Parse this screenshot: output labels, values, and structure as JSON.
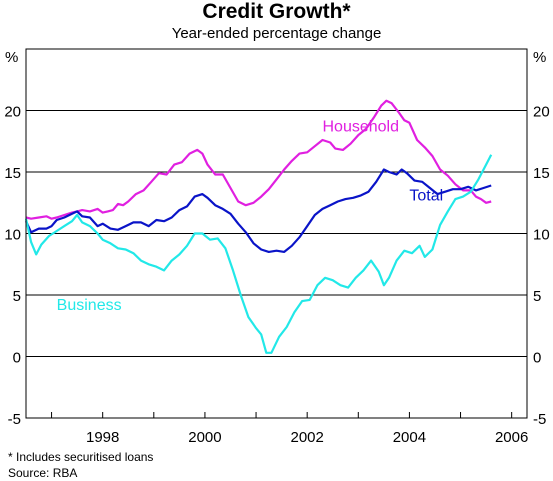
{
  "title": "Credit Growth*",
  "subtitle": "Year-ended percentage change",
  "footnote": "*   Includes securitised loans",
  "source": "Source: RBA",
  "chart_data": {
    "type": "line",
    "title": "Credit Growth*",
    "subtitle": "Year-ended percentage change",
    "y_unit_left": "%",
    "y_unit_right": "%",
    "ylim": [
      -5,
      25
    ],
    "yticks": [
      -5,
      0,
      5,
      10,
      15,
      20
    ],
    "ytick_labels": [
      "-5",
      "0",
      "5",
      "10",
      "15",
      "20"
    ],
    "xlim": [
      1996.5,
      2006.3
    ],
    "xticks": [
      1998,
      2000,
      2002,
      2004,
      2006
    ],
    "xtick_labels": [
      "1998",
      "2000",
      "2002",
      "2004",
      "2006"
    ],
    "grid": "horizontal",
    "series": [
      {
        "name": "Household",
        "color": "#e020e0",
        "label_pos": [
          2002.3,
          18.3
        ],
        "points": [
          [
            1996.5,
            11.3
          ],
          [
            1996.6,
            11.2
          ],
          [
            1996.75,
            11.3
          ],
          [
            1996.9,
            11.4
          ],
          [
            1997.0,
            11.2
          ],
          [
            1997.1,
            11.3
          ],
          [
            1997.25,
            11.5
          ],
          [
            1997.4,
            11.7
          ],
          [
            1997.5,
            11.8
          ],
          [
            1997.6,
            11.9
          ],
          [
            1997.75,
            11.8
          ],
          [
            1997.9,
            12.0
          ],
          [
            1998.0,
            11.7
          ],
          [
            1998.1,
            11.8
          ],
          [
            1998.2,
            11.9
          ],
          [
            1998.3,
            12.4
          ],
          [
            1998.4,
            12.3
          ],
          [
            1998.5,
            12.6
          ],
          [
            1998.65,
            13.2
          ],
          [
            1998.8,
            13.5
          ],
          [
            1998.95,
            14.2
          ],
          [
            1999.1,
            14.9
          ],
          [
            1999.25,
            14.8
          ],
          [
            1999.4,
            15.6
          ],
          [
            1999.55,
            15.8
          ],
          [
            1999.7,
            16.5
          ],
          [
            1999.85,
            16.8
          ],
          [
            1999.95,
            16.5
          ],
          [
            2000.05,
            15.6
          ],
          [
            2000.2,
            14.8
          ],
          [
            2000.35,
            14.8
          ],
          [
            2000.5,
            13.7
          ],
          [
            2000.65,
            12.6
          ],
          [
            2000.8,
            12.3
          ],
          [
            2000.95,
            12.5
          ],
          [
            2001.1,
            13.0
          ],
          [
            2001.25,
            13.6
          ],
          [
            2001.4,
            14.4
          ],
          [
            2001.55,
            15.2
          ],
          [
            2001.7,
            15.9
          ],
          [
            2001.85,
            16.5
          ],
          [
            2002.0,
            16.6
          ],
          [
            2002.15,
            17.1
          ],
          [
            2002.3,
            17.6
          ],
          [
            2002.45,
            17.4
          ],
          [
            2002.55,
            16.9
          ],
          [
            2002.7,
            16.8
          ],
          [
            2002.85,
            17.3
          ],
          [
            2003.0,
            18.0
          ],
          [
            2003.15,
            18.5
          ],
          [
            2003.3,
            19.4
          ],
          [
            2003.45,
            20.4
          ],
          [
            2003.55,
            20.8
          ],
          [
            2003.65,
            20.6
          ],
          [
            2003.8,
            19.8
          ],
          [
            2003.9,
            19.2
          ],
          [
            2004.0,
            19.0
          ],
          [
            2004.15,
            17.6
          ],
          [
            2004.3,
            17.0
          ],
          [
            2004.45,
            16.3
          ],
          [
            2004.6,
            15.2
          ],
          [
            2004.75,
            14.7
          ],
          [
            2004.9,
            14.0
          ],
          [
            2005.05,
            13.5
          ],
          [
            2005.2,
            13.5
          ],
          [
            2005.3,
            13.0
          ],
          [
            2005.4,
            12.8
          ],
          [
            2005.5,
            12.5
          ],
          [
            2005.6,
            12.6
          ]
        ]
      },
      {
        "name": "Total",
        "color": "#0a14c8",
        "label_pos": [
          2004.0,
          12.7
        ],
        "points": [
          [
            1996.5,
            11.0
          ],
          [
            1996.6,
            10.1
          ],
          [
            1996.75,
            10.4
          ],
          [
            1996.9,
            10.4
          ],
          [
            1997.0,
            10.6
          ],
          [
            1997.1,
            11.1
          ],
          [
            1997.25,
            11.3
          ],
          [
            1997.4,
            11.6
          ],
          [
            1997.5,
            11.8
          ],
          [
            1997.6,
            11.4
          ],
          [
            1997.75,
            11.3
          ],
          [
            1997.9,
            10.6
          ],
          [
            1998.0,
            10.8
          ],
          [
            1998.15,
            10.4
          ],
          [
            1998.3,
            10.3
          ],
          [
            1998.45,
            10.6
          ],
          [
            1998.6,
            10.9
          ],
          [
            1998.75,
            10.9
          ],
          [
            1998.9,
            10.6
          ],
          [
            1999.05,
            11.1
          ],
          [
            1999.2,
            11.0
          ],
          [
            1999.35,
            11.3
          ],
          [
            1999.5,
            11.9
          ],
          [
            1999.65,
            12.2
          ],
          [
            1999.8,
            13.0
          ],
          [
            1999.95,
            13.2
          ],
          [
            2000.05,
            12.9
          ],
          [
            2000.2,
            12.3
          ],
          [
            2000.35,
            12.0
          ],
          [
            2000.5,
            11.6
          ],
          [
            2000.65,
            10.8
          ],
          [
            2000.8,
            10.1
          ],
          [
            2000.95,
            9.2
          ],
          [
            2001.1,
            8.7
          ],
          [
            2001.25,
            8.5
          ],
          [
            2001.4,
            8.6
          ],
          [
            2001.55,
            8.5
          ],
          [
            2001.7,
            9.0
          ],
          [
            2001.85,
            9.7
          ],
          [
            2002.0,
            10.6
          ],
          [
            2002.15,
            11.5
          ],
          [
            2002.3,
            12.0
          ],
          [
            2002.45,
            12.3
          ],
          [
            2002.6,
            12.6
          ],
          [
            2002.75,
            12.8
          ],
          [
            2002.9,
            12.9
          ],
          [
            2003.05,
            13.1
          ],
          [
            2003.2,
            13.4
          ],
          [
            2003.35,
            14.2
          ],
          [
            2003.5,
            15.2
          ],
          [
            2003.6,
            15.0
          ],
          [
            2003.75,
            14.8
          ],
          [
            2003.85,
            15.2
          ],
          [
            2003.95,
            14.9
          ],
          [
            2004.1,
            14.3
          ],
          [
            2004.25,
            14.2
          ],
          [
            2004.4,
            13.7
          ],
          [
            2004.55,
            13.2
          ],
          [
            2004.7,
            13.4
          ],
          [
            2004.85,
            13.6
          ],
          [
            2005.0,
            13.6
          ],
          [
            2005.15,
            13.8
          ],
          [
            2005.3,
            13.5
          ],
          [
            2005.45,
            13.7
          ],
          [
            2005.6,
            13.9
          ]
        ]
      },
      {
        "name": "Business",
        "color": "#22e8e8",
        "label_pos": [
          1997.1,
          3.8
        ],
        "points": [
          [
            1996.5,
            11.2
          ],
          [
            1996.6,
            9.3
          ],
          [
            1996.7,
            8.3
          ],
          [
            1996.8,
            9.1
          ],
          [
            1996.95,
            9.8
          ],
          [
            1997.1,
            10.2
          ],
          [
            1997.25,
            10.6
          ],
          [
            1997.4,
            11.0
          ],
          [
            1997.5,
            11.5
          ],
          [
            1997.6,
            10.9
          ],
          [
            1997.75,
            10.6
          ],
          [
            1997.9,
            10.0
          ],
          [
            1998.0,
            9.5
          ],
          [
            1998.15,
            9.2
          ],
          [
            1998.3,
            8.8
          ],
          [
            1998.45,
            8.7
          ],
          [
            1998.6,
            8.4
          ],
          [
            1998.75,
            7.8
          ],
          [
            1998.9,
            7.5
          ],
          [
            1999.05,
            7.3
          ],
          [
            1999.2,
            7.0
          ],
          [
            1999.35,
            7.8
          ],
          [
            1999.5,
            8.3
          ],
          [
            1999.65,
            9.0
          ],
          [
            1999.8,
            10.0
          ],
          [
            1999.95,
            10.0
          ],
          [
            2000.1,
            9.5
          ],
          [
            2000.25,
            9.6
          ],
          [
            2000.4,
            8.8
          ],
          [
            2000.55,
            7.0
          ],
          [
            2000.7,
            5.0
          ],
          [
            2000.85,
            3.2
          ],
          [
            2001.0,
            2.3
          ],
          [
            2001.1,
            1.8
          ],
          [
            2001.2,
            0.3
          ],
          [
            2001.3,
            0.3
          ],
          [
            2001.45,
            1.6
          ],
          [
            2001.6,
            2.4
          ],
          [
            2001.75,
            3.6
          ],
          [
            2001.9,
            4.5
          ],
          [
            2002.05,
            4.6
          ],
          [
            2002.2,
            5.8
          ],
          [
            2002.35,
            6.4
          ],
          [
            2002.5,
            6.2
          ],
          [
            2002.65,
            5.8
          ],
          [
            2002.8,
            5.6
          ],
          [
            2002.95,
            6.4
          ],
          [
            2003.1,
            7.0
          ],
          [
            2003.25,
            7.8
          ],
          [
            2003.4,
            6.9
          ],
          [
            2003.5,
            5.8
          ],
          [
            2003.6,
            6.4
          ],
          [
            2003.75,
            7.8
          ],
          [
            2003.9,
            8.6
          ],
          [
            2004.05,
            8.4
          ],
          [
            2004.2,
            9.0
          ],
          [
            2004.3,
            8.1
          ],
          [
            2004.45,
            8.7
          ],
          [
            2004.6,
            10.7
          ],
          [
            2004.75,
            11.8
          ],
          [
            2004.9,
            12.8
          ],
          [
            2005.05,
            13.0
          ],
          [
            2005.2,
            13.4
          ],
          [
            2005.35,
            14.4
          ],
          [
            2005.5,
            15.6
          ],
          [
            2005.6,
            16.4
          ]
        ]
      }
    ]
  }
}
